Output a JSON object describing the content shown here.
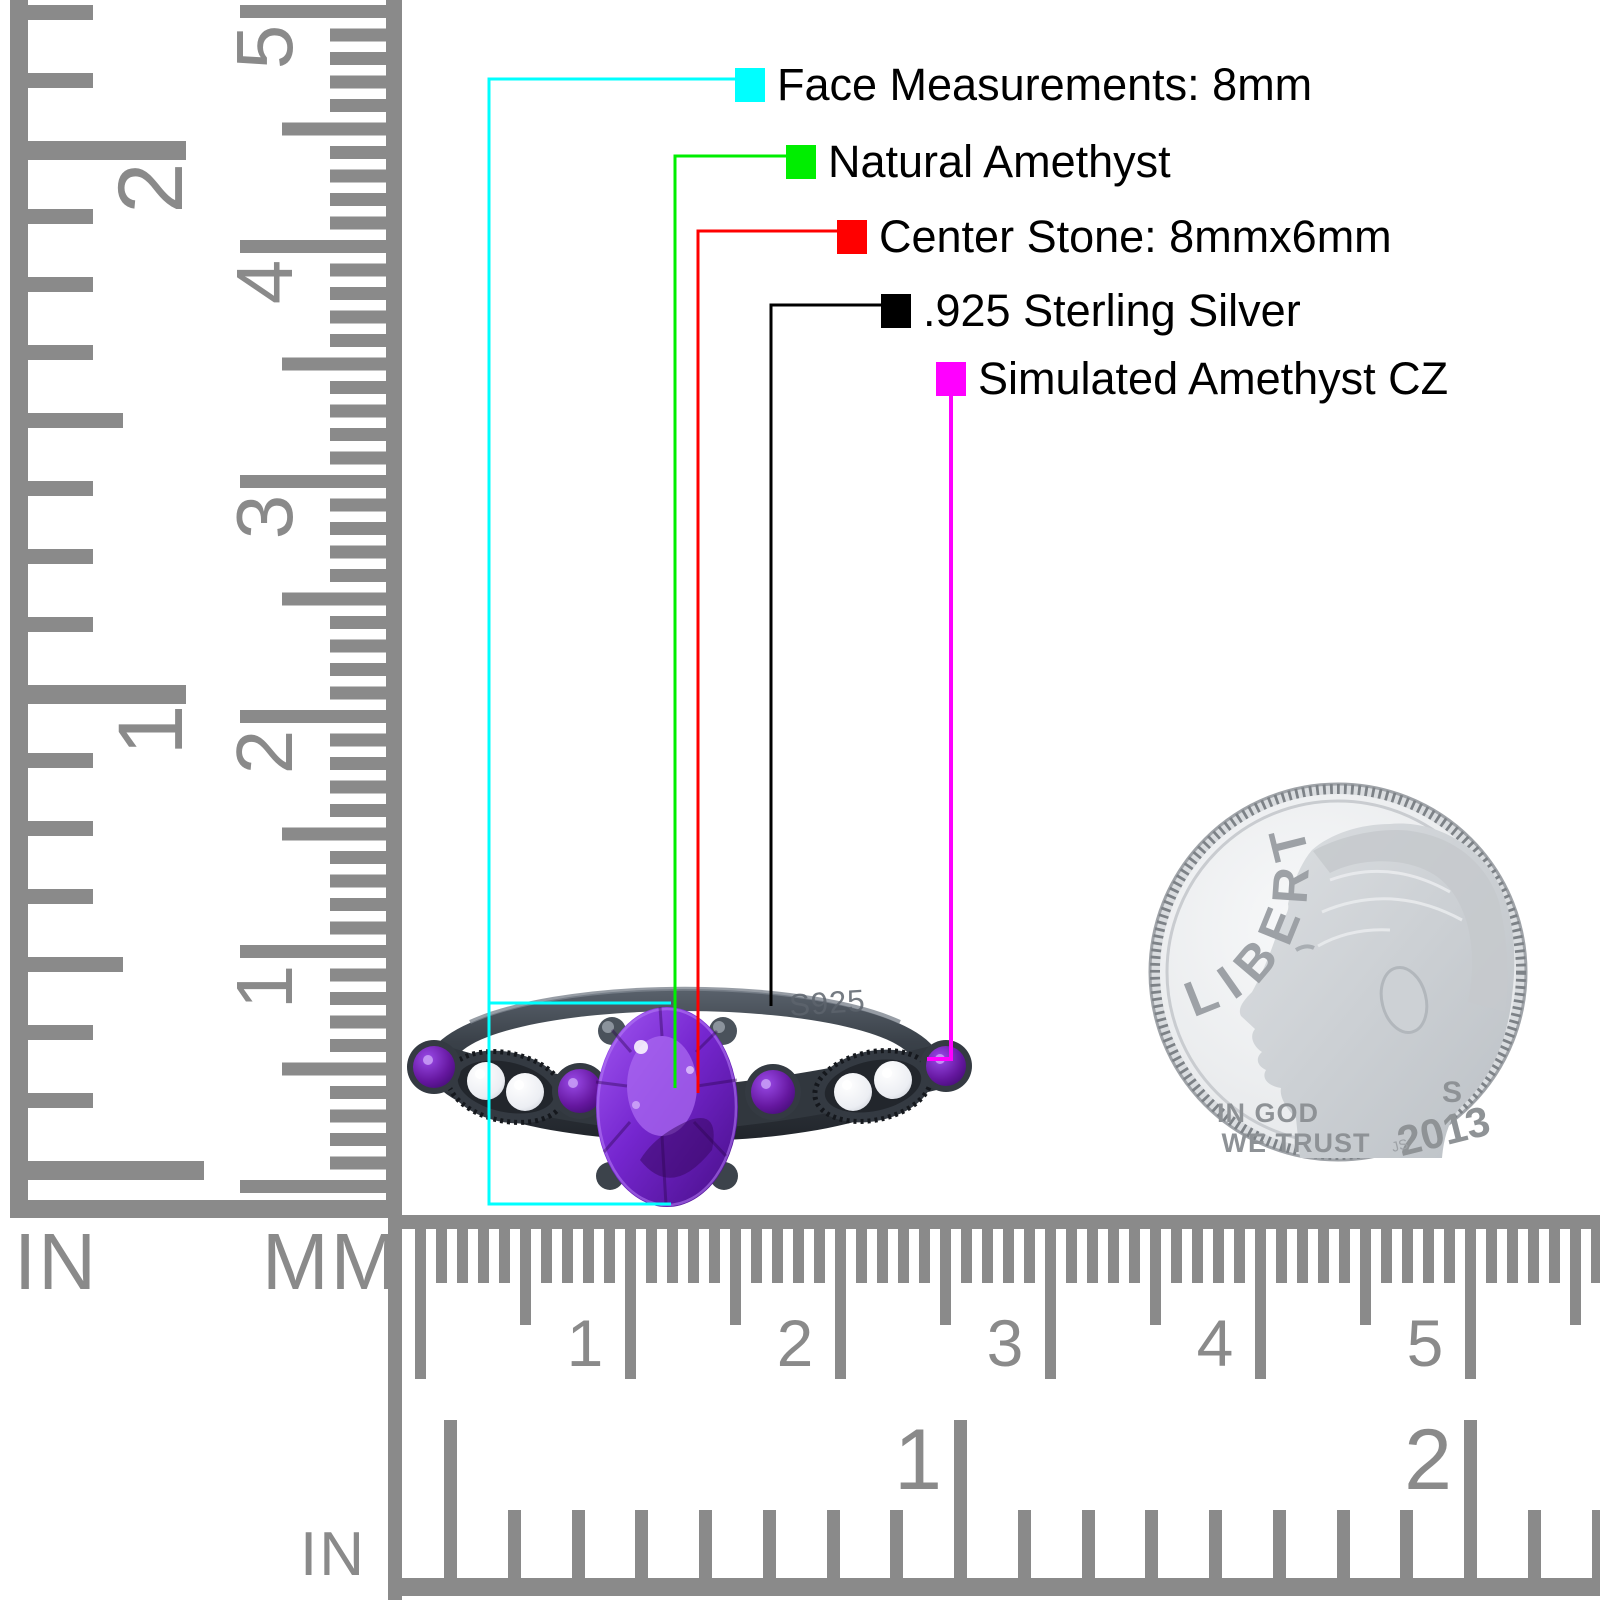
{
  "annotations": {
    "items": [
      {
        "id": "face-measurements",
        "label": "Face Measurements: 8mm",
        "swatch_color": "#00ffff"
      },
      {
        "id": "natural-amethyst",
        "label": "Natural Amethyst",
        "swatch_color": "#00ee00"
      },
      {
        "id": "center-stone",
        "label": "Center Stone: 8mmx6mm",
        "swatch_color": "#ff0000"
      },
      {
        "id": "sterling-silver",
        "label": ".925 Sterling Silver",
        "swatch_color": "#000000"
      },
      {
        "id": "simulated-cz",
        "label": "Simulated Amethyst CZ",
        "swatch_color": "#ff00ff"
      }
    ]
  },
  "rulers": {
    "left_inch": {
      "unit_label": "IN",
      "numbers": [
        "2",
        "1"
      ]
    },
    "left_mm": {
      "unit_label": "MM",
      "numbers": [
        "5",
        "4",
        "3",
        "2",
        "1"
      ]
    },
    "bottom_mm": {
      "numbers": [
        "1",
        "2",
        "3",
        "4",
        "5"
      ]
    },
    "bottom_inch": {
      "unit_label": "IN",
      "numbers": [
        "1",
        "2"
      ]
    }
  },
  "ring": {
    "engraving": "S925"
  },
  "coin": {
    "legend": "LIBERTY",
    "motto_line1": "IN GOD",
    "motto_line2": "WE TRUST",
    "mint_mark": "S",
    "year": "2013",
    "designer_initials": "JS"
  },
  "colors": {
    "cyan": "#00ffff",
    "green": "#00ee00",
    "red": "#ff0000",
    "black": "#000000",
    "magenta": "#ff00ff",
    "ruler_gray": "#8a8a8a"
  }
}
